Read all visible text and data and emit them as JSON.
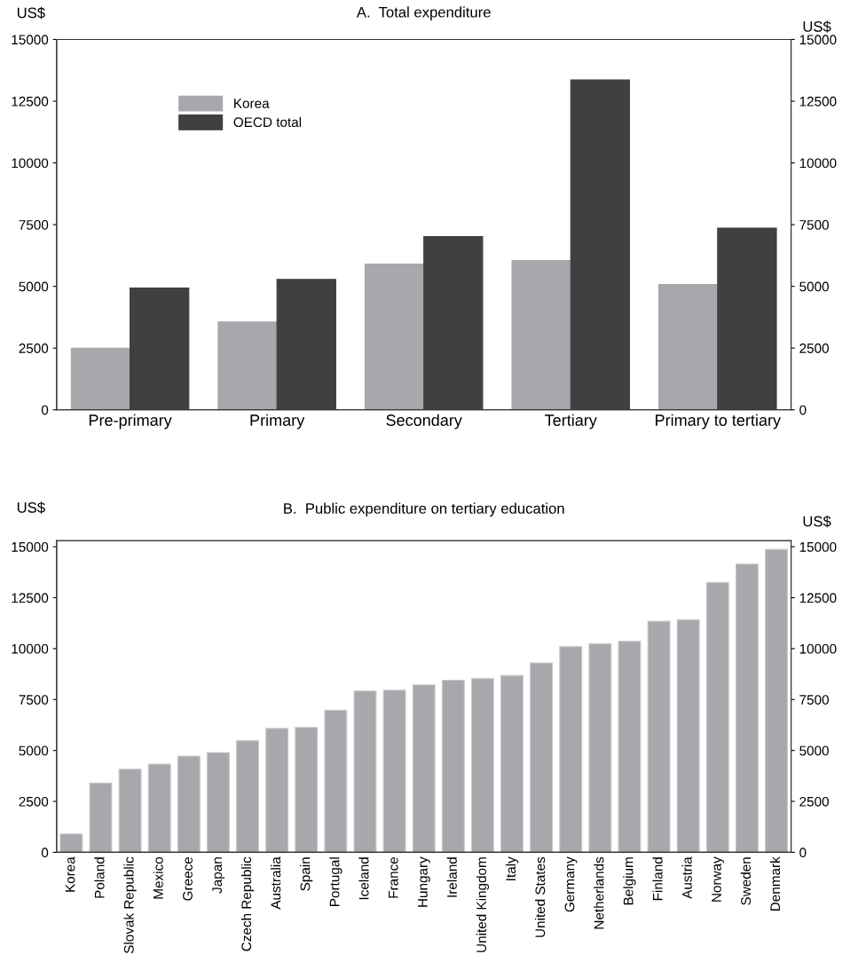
{
  "chart_data": [
    {
      "type": "bar",
      "title": "A.  Total expenditure",
      "ylabel": "US$",
      "y2label": "US$",
      "categories": [
        "Pre-primary",
        "Primary",
        "Secondary",
        "Tertiary",
        "Primary to tertiary"
      ],
      "series": [
        {
          "name": "Korea",
          "color": "#a7a8ac",
          "values": [
            2500,
            3560,
            5900,
            6050,
            5080
          ]
        },
        {
          "name": "OECD total",
          "color": "#404040",
          "values": [
            4930,
            5280,
            7020,
            13360,
            7360
          ]
        }
      ],
      "ylim": [
        0,
        15000
      ],
      "yticks": [
        0,
        2500,
        5000,
        7500,
        10000,
        12500,
        15000
      ],
      "y2lim": [
        0,
        15000
      ],
      "y2ticks": [
        0,
        2500,
        5000,
        7500,
        10000,
        12500,
        15000
      ],
      "grid": false,
      "legend": "top left"
    },
    {
      "type": "bar",
      "title": "B.  Public expenditure on tertiary education",
      "ylabel": "US$",
      "y2label": "US$",
      "categories": [
        "Korea",
        "Poland",
        "Slovak Republic",
        "Mexico",
        "Greece",
        "Japan",
        "Czech Republic",
        "Australia",
        "Spain",
        "Portugal",
        "Iceland",
        "France",
        "Hungary",
        "Ireland",
        "United Kingdom",
        "Italy",
        "United States",
        "Germany",
        "Netherlands",
        "Belgium",
        "Finland",
        "Austria",
        "Norway",
        "Sweden",
        "Denmark"
      ],
      "series": [
        {
          "color": "#a7a8ac",
          "values": [
            900,
            3400,
            4080,
            4330,
            4720,
            4900,
            5480,
            6080,
            6130,
            6980,
            7920,
            7960,
            8220,
            8450,
            8530,
            8680,
            9300,
            10100,
            10240,
            10360,
            11340,
            11420,
            13250,
            14150,
            14870
          ]
        }
      ],
      "ylim": [
        0,
        15300
      ],
      "yticks": [
        0,
        2500,
        5000,
        7500,
        10000,
        12500,
        15000
      ],
      "y2lim": [
        0,
        15300
      ],
      "y2ticks": [
        0,
        2500,
        5000,
        7500,
        10000,
        12500,
        15000
      ],
      "grid": false,
      "legend": false
    }
  ]
}
